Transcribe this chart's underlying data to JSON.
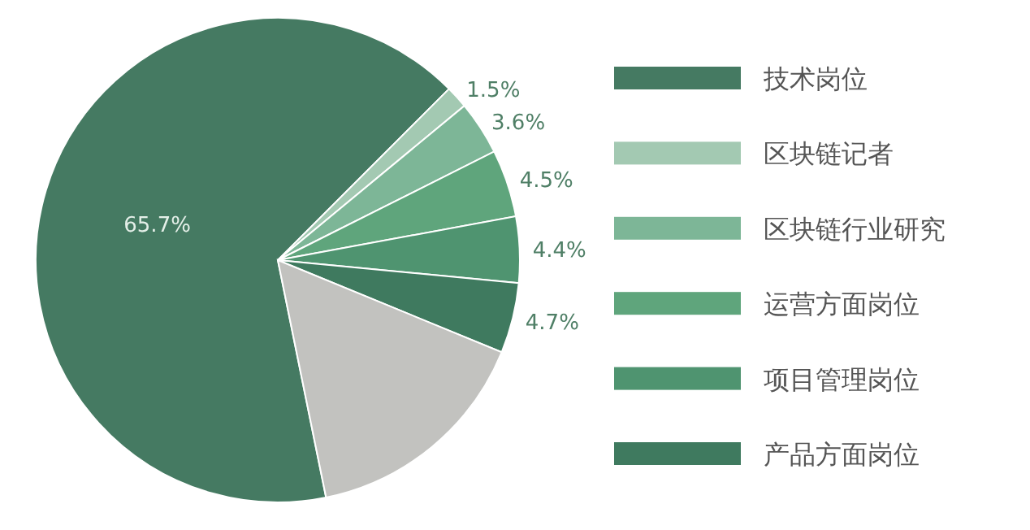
{
  "chart_data": {
    "type": "pie",
    "categories": [
      "技术岗位",
      "区块链记者",
      "区块链行业研究",
      "运营方面岗位",
      "项目管理岗位",
      "产品方面岗位",
      null
    ],
    "values": [
      65.7,
      1.5,
      3.6,
      4.5,
      4.4,
      4.7,
      15.6
    ],
    "value_labels": [
      "65.7%",
      "1.5%",
      "3.6%",
      "4.5%",
      "4.4%",
      "4.7%",
      null
    ],
    "colors": [
      "#457a62",
      "#a3c9b2",
      "#7db697",
      "#5fa57c",
      "#4f9470",
      "#3f7a5f",
      "#c2c2bf"
    ],
    "legend": "right"
  }
}
